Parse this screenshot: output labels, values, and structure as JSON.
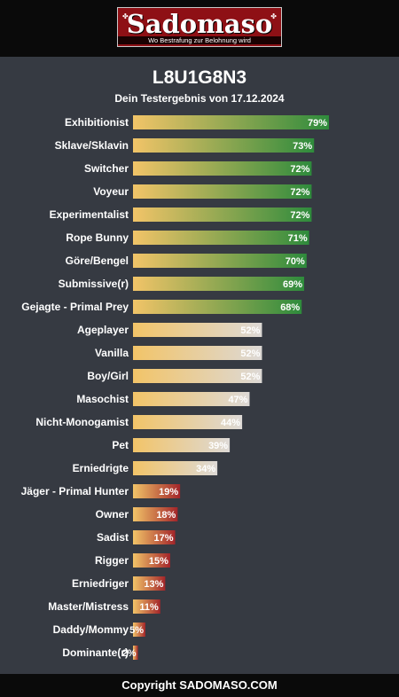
{
  "header": {
    "logo_text": "Sadomaso",
    "logo_tagline": "Wo Bestrafung zur Belohnung wird"
  },
  "title": "L8U1G8N3",
  "subtitle": "Dein Testergebnis von 17.12.2024",
  "footer": "Copyright SADOMASO.COM",
  "colors": {
    "background": "#363a42",
    "bar_start": "#f2c468",
    "high": "#2e8b3c",
    "mid": "#ddd9d6",
    "low": "#a3252a"
  },
  "chart_data": {
    "type": "bar",
    "orientation": "horizontal",
    "xlim": [
      0,
      100
    ],
    "unit": "%",
    "categories": [
      "Exhibitionist",
      "Sklave/Sklavin",
      "Switcher",
      "Voyeur",
      "Experimentalist",
      "Rope Bunny",
      "Göre/Bengel",
      "Submissive(r)",
      "Gejagte - Primal Prey",
      "Ageplayer",
      "Vanilla",
      "Boy/Girl",
      "Masochist",
      "Nicht-Monogamist",
      "Pet",
      "Erniedrigte",
      "Jäger - Primal Hunter",
      "Owner",
      "Sadist",
      "Rigger",
      "Erniedriger",
      "Master/Mistress",
      "Daddy/Mommy",
      "Dominante(r)"
    ],
    "values": [
      79,
      73,
      72,
      72,
      72,
      71,
      70,
      69,
      68,
      52,
      52,
      52,
      47,
      44,
      39,
      34,
      19,
      18,
      17,
      15,
      13,
      11,
      5,
      2
    ],
    "value_labels": [
      "79%",
      "73%",
      "72%",
      "72%",
      "72%",
      "71%",
      "70%",
      "69%",
      "68%",
      "52%",
      "52%",
      "52%",
      "47%",
      "44%",
      "39%",
      "34%",
      "19%",
      "18%",
      "17%",
      "15%",
      "13%",
      "11%",
      "5%",
      "2%"
    ]
  }
}
